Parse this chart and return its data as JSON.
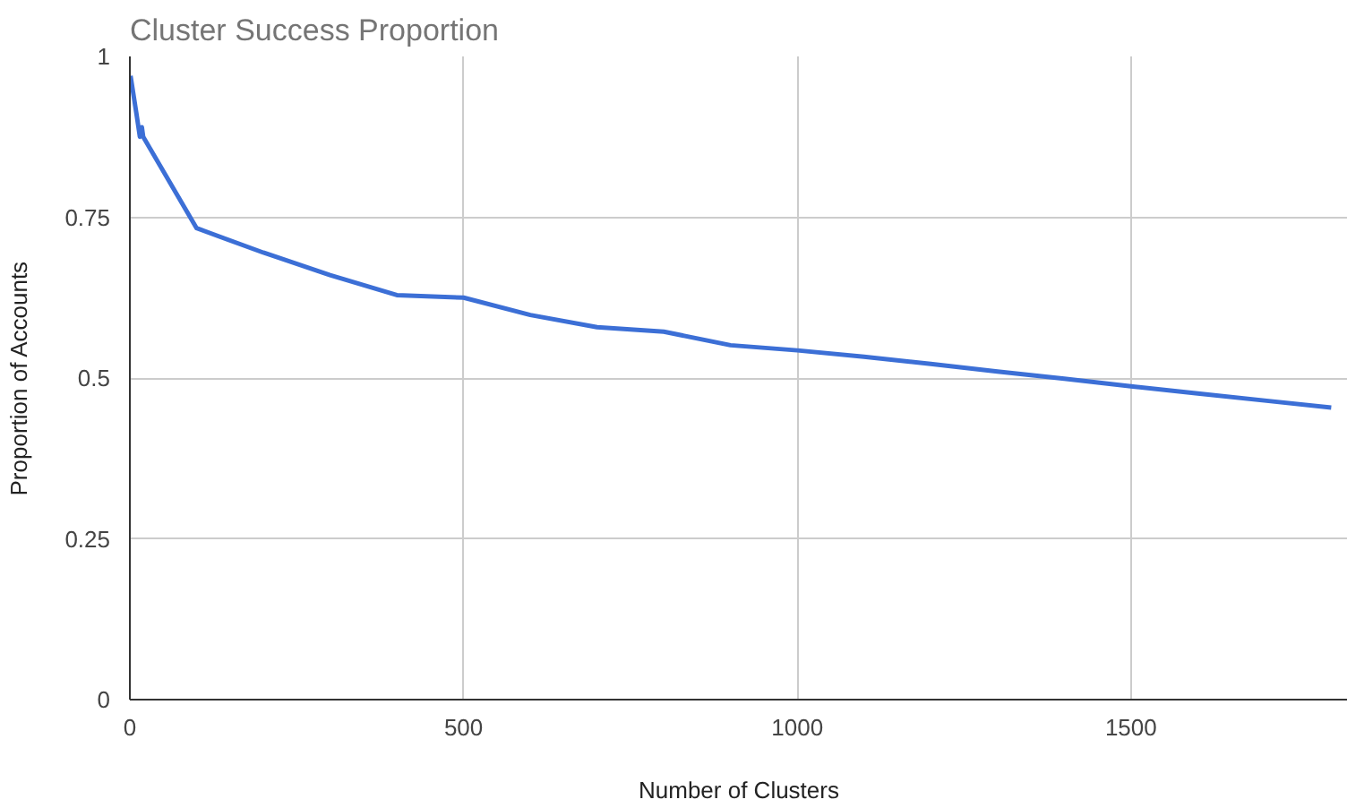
{
  "chart_data": {
    "type": "line",
    "title": "Cluster Success Proportion",
    "xlabel": "Number of Clusters",
    "ylabel": "Proportion of Accounts",
    "x": [
      1,
      10,
      15,
      18,
      20,
      100,
      200,
      300,
      400,
      500,
      600,
      700,
      800,
      900,
      1000,
      1100,
      1200,
      1300,
      1400,
      1500,
      1600,
      1700,
      1800
    ],
    "series": [
      {
        "color": "#3c6fd6",
        "values": [
          0.97,
          0.91,
          0.875,
          0.89,
          0.875,
          0.733,
          0.695,
          0.66,
          0.629,
          0.625,
          0.598,
          0.579,
          0.572,
          0.551,
          0.543,
          0.533,
          0.522,
          0.51,
          0.499,
          0.487,
          0.476,
          0.465,
          0.454
        ]
      }
    ],
    "xlim": [
      0,
      1825
    ],
    "ylim": [
      0,
      1
    ],
    "xticks": [
      0,
      500,
      1000,
      1500
    ],
    "yticks": [
      0,
      0.25,
      0.5,
      0.75,
      1
    ],
    "grid": true
  }
}
